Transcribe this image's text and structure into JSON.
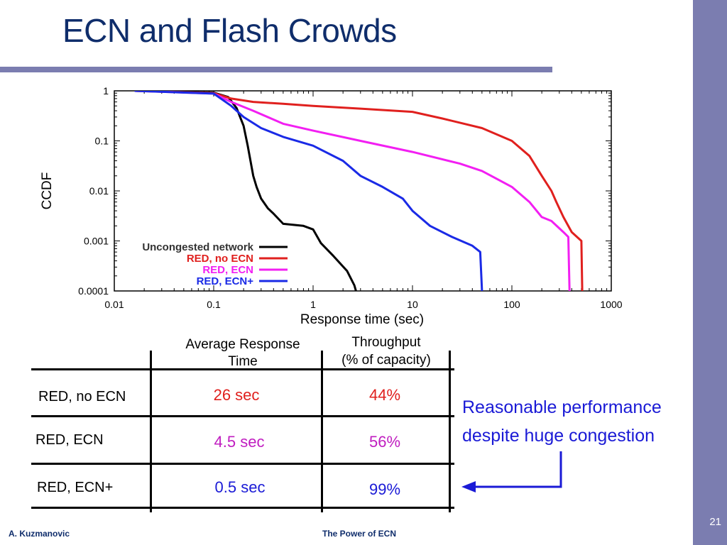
{
  "slide": {
    "title": "ECN and Flash Crowds",
    "footer_left": "A. Kuzmanovic",
    "footer_center": "The Power of ECN",
    "page_number": "21"
  },
  "chart_data": {
    "type": "line",
    "ylabel": "CCDF",
    "xlabel": "Response time (sec)",
    "x_scale": "log",
    "y_scale": "log",
    "xlim": [
      0.01,
      1000
    ],
    "ylim": [
      0.0001,
      1
    ],
    "x_ticks": [
      "0.01",
      "0.1",
      "1",
      "10",
      "100",
      "1000"
    ],
    "y_ticks": [
      "1",
      "0.1",
      "0.01",
      "0.001",
      "0.0001"
    ],
    "grid": false,
    "legend_position": "bottom-left",
    "series": [
      {
        "name": "Uncongested network",
        "color": "#000000",
        "points": [
          [
            0.016,
            1
          ],
          [
            0.1,
            0.92
          ],
          [
            0.14,
            0.75
          ],
          [
            0.17,
            0.45
          ],
          [
            0.2,
            0.2
          ],
          [
            0.22,
            0.08
          ],
          [
            0.25,
            0.02
          ],
          [
            0.27,
            0.012
          ],
          [
            0.3,
            0.007
          ],
          [
            0.35,
            0.0045
          ],
          [
            0.4,
            0.0035
          ],
          [
            0.5,
            0.0022
          ],
          [
            0.8,
            0.002
          ],
          [
            1.0,
            0.0017
          ],
          [
            1.2,
            0.0009
          ],
          [
            1.6,
            0.0005
          ],
          [
            2.2,
            0.00025
          ],
          [
            2.6,
            0.00013
          ],
          [
            2.7,
            0.0001
          ]
        ]
      },
      {
        "name": "RED, no ECN",
        "color": "#e0201e",
        "points": [
          [
            0.016,
            1
          ],
          [
            0.1,
            0.9
          ],
          [
            0.15,
            0.7
          ],
          [
            0.25,
            0.6
          ],
          [
            0.5,
            0.55
          ],
          [
            1,
            0.5
          ],
          [
            3,
            0.44
          ],
          [
            10,
            0.38
          ],
          [
            20,
            0.28
          ],
          [
            50,
            0.18
          ],
          [
            100,
            0.1
          ],
          [
            150,
            0.05
          ],
          [
            200,
            0.02
          ],
          [
            250,
            0.01
          ],
          [
            280,
            0.006
          ],
          [
            330,
            0.003
          ],
          [
            400,
            0.0015
          ],
          [
            500,
            0.001
          ],
          [
            510,
            0.0001
          ]
        ]
      },
      {
        "name": "RED, ECN",
        "color": "#f21ff2",
        "points": [
          [
            0.016,
            1
          ],
          [
            0.1,
            0.88
          ],
          [
            0.15,
            0.6
          ],
          [
            0.25,
            0.4
          ],
          [
            0.5,
            0.22
          ],
          [
            1,
            0.16
          ],
          [
            3,
            0.1
          ],
          [
            10,
            0.06
          ],
          [
            30,
            0.035
          ],
          [
            50,
            0.025
          ],
          [
            100,
            0.012
          ],
          [
            150,
            0.006
          ],
          [
            200,
            0.003
          ],
          [
            250,
            0.0025
          ],
          [
            330,
            0.0015
          ],
          [
            370,
            0.0012
          ],
          [
            380,
            0.0001
          ]
        ]
      },
      {
        "name": "RED, ECN+",
        "color": "#1a2ae6",
        "points": [
          [
            0.016,
            1
          ],
          [
            0.1,
            0.88
          ],
          [
            0.15,
            0.5
          ],
          [
            0.2,
            0.3
          ],
          [
            0.3,
            0.18
          ],
          [
            0.5,
            0.12
          ],
          [
            1,
            0.08
          ],
          [
            2,
            0.04
          ],
          [
            3,
            0.02
          ],
          [
            5,
            0.012
          ],
          [
            8,
            0.007
          ],
          [
            10,
            0.004
          ],
          [
            15,
            0.002
          ],
          [
            25,
            0.0012
          ],
          [
            40,
            0.0008
          ],
          [
            48,
            0.0006
          ],
          [
            50,
            0.0001
          ]
        ]
      }
    ]
  },
  "table": {
    "col1_header_line1": "Average Response",
    "col1_header_line2": "Time",
    "col2_header_line1": "Throughput",
    "col2_header_line2": "(% of capacity)",
    "rows": [
      {
        "label": "RED, no ECN",
        "response": "26 sec",
        "throughput": "44%",
        "color": "#e0201e"
      },
      {
        "label": "RED, ECN",
        "response": "4.5 sec",
        "throughput": "56%",
        "color": "#c01dc0"
      },
      {
        "label": "RED, ECN+",
        "response": "0.5 sec",
        "throughput": "99%",
        "color": "#1a1ad6"
      }
    ]
  },
  "note": {
    "line1": "Reasonable performance",
    "line2": "despite huge congestion",
    "color": "#1a1ad6"
  }
}
